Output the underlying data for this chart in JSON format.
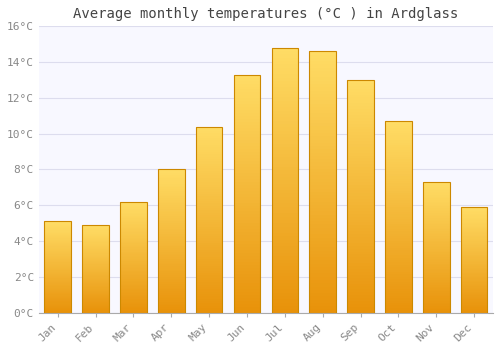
{
  "title": "Average monthly temperatures (°C ) in Ardglass",
  "months": [
    "Jan",
    "Feb",
    "Mar",
    "Apr",
    "May",
    "Jun",
    "Jul",
    "Aug",
    "Sep",
    "Oct",
    "Nov",
    "Dec"
  ],
  "values": [
    5.1,
    4.9,
    6.2,
    8.0,
    10.4,
    13.3,
    14.8,
    14.6,
    13.0,
    10.7,
    7.3,
    5.9
  ],
  "bar_color_bottom": "#E8920A",
  "bar_color_top": "#FFDD66",
  "bar_edge_color": "#CC8800",
  "ylim": [
    0,
    16
  ],
  "yticks": [
    0,
    2,
    4,
    6,
    8,
    10,
    12,
    14,
    16
  ],
  "ytick_labels": [
    "0°C",
    "2°C",
    "4°C",
    "6°C",
    "8°C",
    "10°C",
    "12°C",
    "14°C",
    "16°C"
  ],
  "background_color": "#FFFFFF",
  "plot_bg_color": "#F8F8FF",
  "grid_color": "#DDDDEE",
  "title_fontsize": 10,
  "tick_fontsize": 8,
  "bar_width": 0.7
}
